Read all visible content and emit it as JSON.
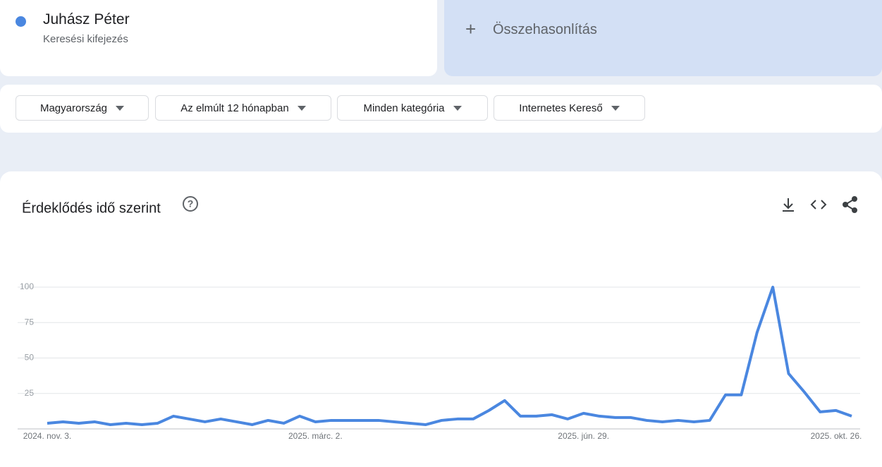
{
  "search": {
    "term": "Juhász Péter",
    "subtitle": "Keresési kifejezés",
    "compare": "Összehasonlítás"
  },
  "filters": [
    "Magyarország",
    "Az elmúlt 12 hónapban",
    "Minden kategória",
    "Internetes Kereső"
  ],
  "chart_data": {
    "type": "line",
    "title": "Érdeklődés idő szerint",
    "categories": [
      "2024. nov. 3.",
      null,
      null,
      null,
      null,
      null,
      null,
      null,
      null,
      null,
      null,
      null,
      null,
      null,
      null,
      null,
      null,
      "2025. márc. 2.",
      null,
      null,
      null,
      null,
      null,
      null,
      null,
      null,
      null,
      null,
      null,
      null,
      null,
      null,
      null,
      null,
      "2025. jún. 29.",
      null,
      null,
      null,
      null,
      null,
      null,
      null,
      null,
      null,
      null,
      null,
      null,
      null,
      null,
      null,
      null,
      "2025. okt. 26."
    ],
    "series": [
      {
        "name": "Juhász Péter",
        "color": "#4a87e0",
        "values": [
          4,
          5,
          4,
          5,
          3,
          4,
          3,
          4,
          9,
          7,
          5,
          7,
          5,
          3,
          6,
          4,
          9,
          5,
          6,
          6,
          6,
          6,
          5,
          4,
          3,
          6,
          7,
          7,
          13,
          20,
          9,
          9,
          10,
          7,
          11,
          9,
          8,
          8,
          6,
          5,
          6,
          5,
          6,
          24,
          24,
          68,
          100,
          39,
          26,
          12,
          13,
          9
        ]
      }
    ],
    "ylim": [
      0,
      100
    ],
    "yticks": [
      25,
      50,
      75,
      100
    ],
    "grid": true
  }
}
